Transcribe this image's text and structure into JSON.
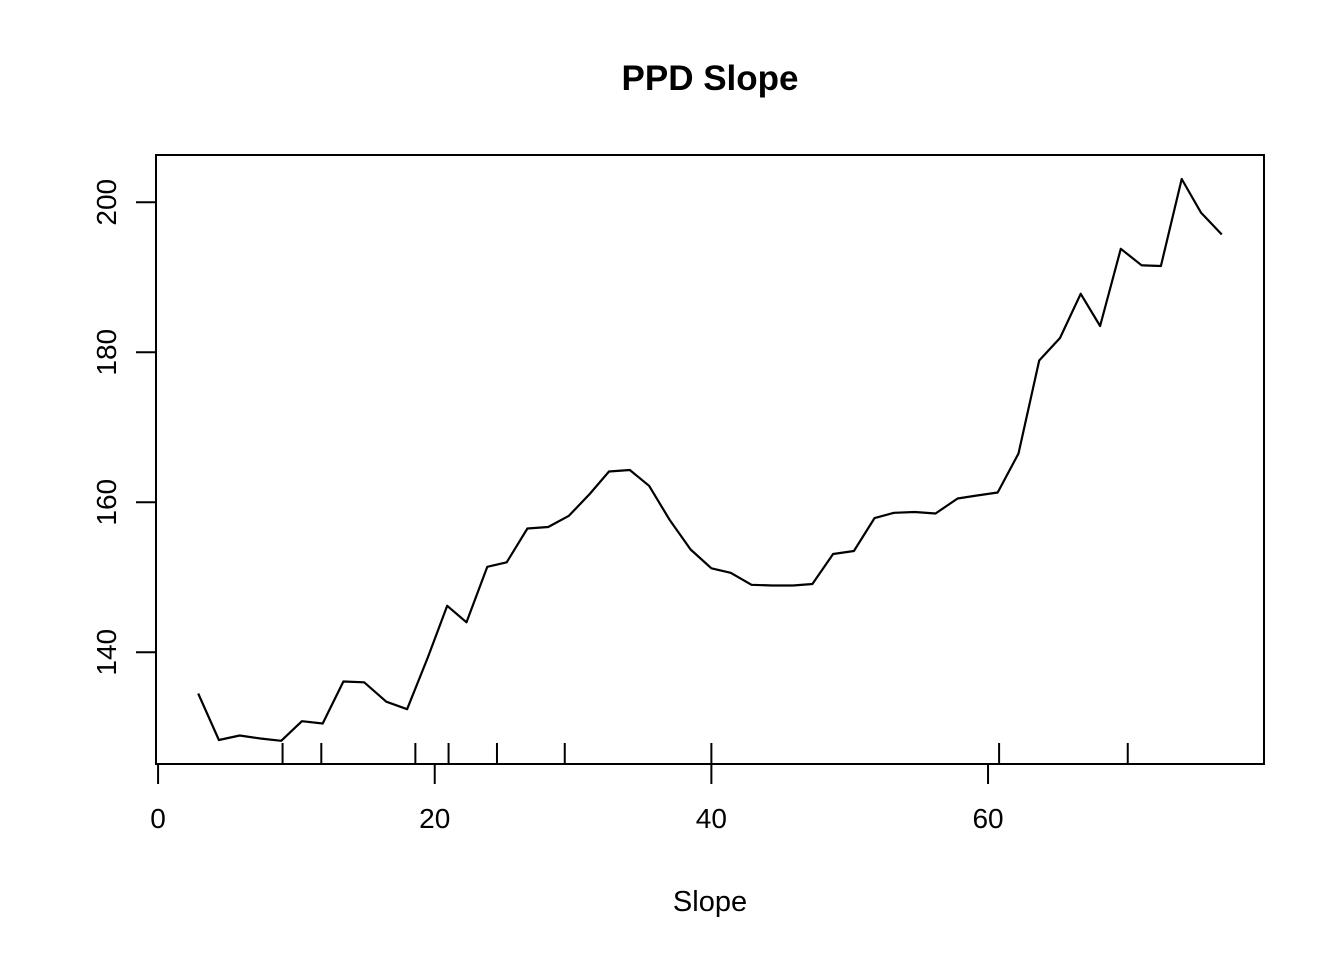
{
  "chart_data": {
    "type": "line",
    "title": "PPD Slope",
    "xlabel": "Slope",
    "ylabel": "",
    "x_ticks": [
      0,
      20,
      40,
      60
    ],
    "y_ticks": [
      140,
      160,
      180,
      200
    ],
    "xlim": [
      -0.15,
      79.95
    ],
    "ylim": [
      125.1,
      206.3
    ],
    "grid": false,
    "legend_position": "none",
    "line_color": "#000000",
    "background_color": "#ffffff",
    "series": [
      {
        "name": "PPD",
        "points": [
          [
            2.9,
            134.5
          ],
          [
            4.4,
            128.3
          ],
          [
            5.9,
            128.9
          ],
          [
            7.4,
            128.5
          ],
          [
            8.9,
            128.2
          ],
          [
            10.4,
            130.8
          ],
          [
            11.9,
            130.5
          ],
          [
            13.4,
            136.1
          ],
          [
            14.9,
            136.0
          ],
          [
            16.5,
            133.4
          ],
          [
            18.0,
            132.4
          ],
          [
            19.5,
            139.3
          ],
          [
            20.9,
            146.2
          ],
          [
            22.3,
            144.0
          ],
          [
            23.8,
            151.4
          ],
          [
            25.2,
            152.0
          ],
          [
            26.7,
            156.5
          ],
          [
            28.2,
            156.7
          ],
          [
            29.7,
            158.2
          ],
          [
            31.2,
            161.1
          ],
          [
            32.6,
            164.1
          ],
          [
            34.1,
            164.3
          ],
          [
            35.5,
            162.2
          ],
          [
            37.0,
            157.6
          ],
          [
            38.5,
            153.7
          ],
          [
            40.0,
            151.2
          ],
          [
            41.4,
            150.6
          ],
          [
            42.9,
            149.0
          ],
          [
            44.4,
            148.9
          ],
          [
            45.9,
            148.9
          ],
          [
            47.3,
            149.1
          ],
          [
            48.8,
            153.1
          ],
          [
            50.3,
            153.5
          ],
          [
            51.8,
            157.9
          ],
          [
            53.2,
            158.6
          ],
          [
            54.7,
            158.7
          ],
          [
            56.2,
            158.5
          ],
          [
            57.8,
            160.5
          ],
          [
            59.2,
            160.9
          ],
          [
            60.7,
            161.3
          ],
          [
            62.2,
            166.5
          ],
          [
            63.7,
            178.9
          ],
          [
            65.2,
            181.9
          ],
          [
            66.7,
            187.8
          ],
          [
            68.1,
            183.5
          ],
          [
            69.6,
            193.8
          ],
          [
            71.1,
            191.6
          ],
          [
            72.5,
            191.5
          ],
          [
            74.0,
            203.1
          ],
          [
            75.4,
            198.6
          ],
          [
            76.9,
            195.7
          ]
        ]
      }
    ],
    "rug_x": [
      9.0,
      11.8,
      18.6,
      21.0,
      24.5,
      29.4,
      40.0,
      60.8,
      70.1
    ]
  }
}
